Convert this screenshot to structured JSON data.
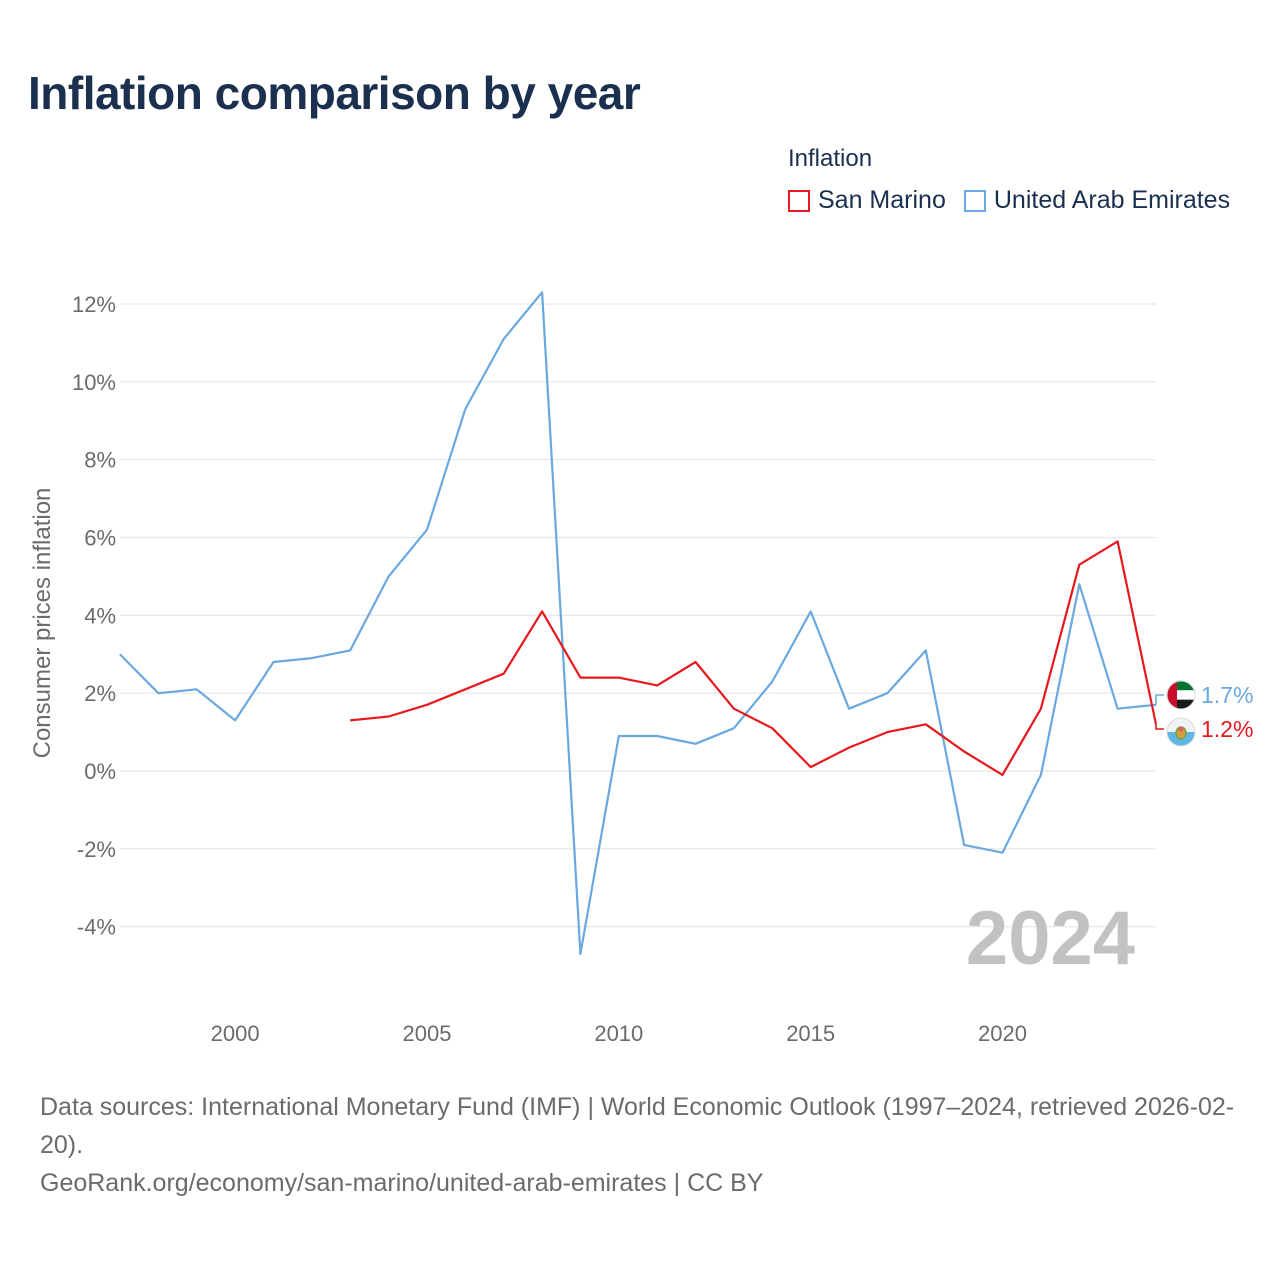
{
  "title": "Inflation comparison by year",
  "legend": {
    "title": "Inflation",
    "items": [
      {
        "label": "San Marino",
        "color": "#e8191e"
      },
      {
        "label": "United Arab Emirates",
        "color": "#6aa8e0"
      }
    ]
  },
  "footer": {
    "sources": "Data sources: International Monetary Fund (IMF) | World Economic Outlook (1997–2024, retrieved 2026-02-20).",
    "link": "GeoRank.org/economy/san-marino/united-arab-emirates | CC BY"
  },
  "chart_data": {
    "type": "line",
    "title": "Inflation comparison by year",
    "xlabel": "",
    "ylabel": "Consumer prices inflation",
    "xlim": [
      1997,
      2024
    ],
    "ylim": [
      -5,
      12.5
    ],
    "y_ticks": [
      -4,
      -2,
      0,
      2,
      4,
      6,
      8,
      10,
      12
    ],
    "y_tick_labels": [
      "-4%",
      "-2%",
      "0%",
      "2%",
      "4%",
      "6%",
      "8%",
      "10%",
      "12%"
    ],
    "x_ticks": [
      2000,
      2005,
      2010,
      2015,
      2020
    ],
    "x_tick_labels": [
      "2000",
      "2005",
      "2010",
      "2015",
      "2020"
    ],
    "grid": true,
    "year_watermark": "2024",
    "series": [
      {
        "name": "San Marino",
        "color": "#e8191e",
        "end_label": "1.2%",
        "x": [
          2003,
          2004,
          2005,
          2006,
          2007,
          2008,
          2009,
          2010,
          2011,
          2012,
          2013,
          2014,
          2015,
          2016,
          2017,
          2018,
          2019,
          2020,
          2021,
          2022,
          2023,
          2024
        ],
        "values": [
          1.3,
          1.4,
          1.7,
          2.1,
          2.5,
          4.1,
          2.4,
          2.4,
          2.2,
          2.8,
          1.6,
          1.1,
          0.1,
          0.6,
          1.0,
          1.2,
          0.5,
          -0.1,
          1.6,
          5.3,
          5.9,
          1.2
        ]
      },
      {
        "name": "United Arab Emirates",
        "color": "#6aa8e0",
        "end_label": "1.7%",
        "x": [
          1997,
          1998,
          1999,
          2000,
          2001,
          2002,
          2003,
          2004,
          2005,
          2006,
          2007,
          2008,
          2009,
          2010,
          2011,
          2012,
          2013,
          2014,
          2015,
          2016,
          2017,
          2018,
          2019,
          2020,
          2021,
          2022,
          2023,
          2024
        ],
        "values": [
          3.0,
          2.0,
          2.1,
          1.3,
          2.8,
          2.9,
          3.1,
          5.0,
          6.2,
          9.3,
          11.1,
          12.3,
          -4.7,
          0.9,
          0.9,
          0.7,
          1.1,
          2.3,
          4.1,
          1.6,
          2.0,
          3.1,
          -1.9,
          -2.1,
          -0.1,
          4.8,
          1.6,
          1.7
        ]
      }
    ]
  }
}
